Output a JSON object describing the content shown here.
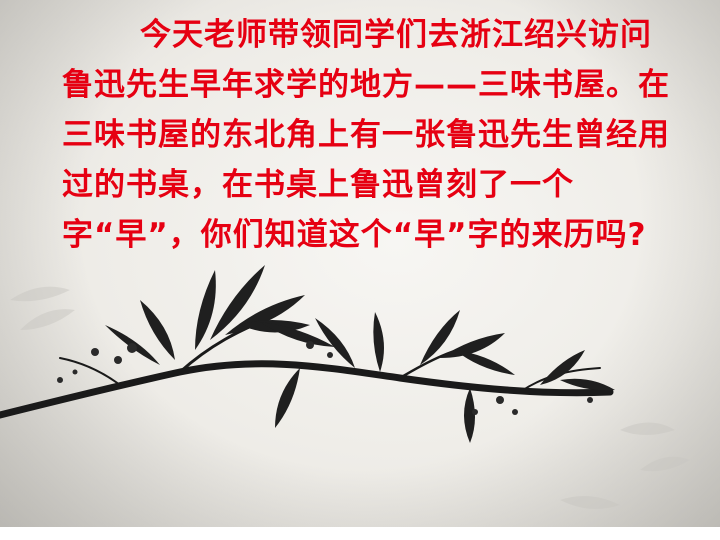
{
  "slide": {
    "paragraph": "今天老师带领同学们去浙江绍兴访问鲁迅先生早年求学的地方——三味书屋。在三味书屋的东北角上有一张鲁迅先生曾经用过的书桌，在书桌上鲁迅曾刻了一个字“早”，你们知道这个“早”字的来历吗?",
    "text_color": "#e60012"
  }
}
